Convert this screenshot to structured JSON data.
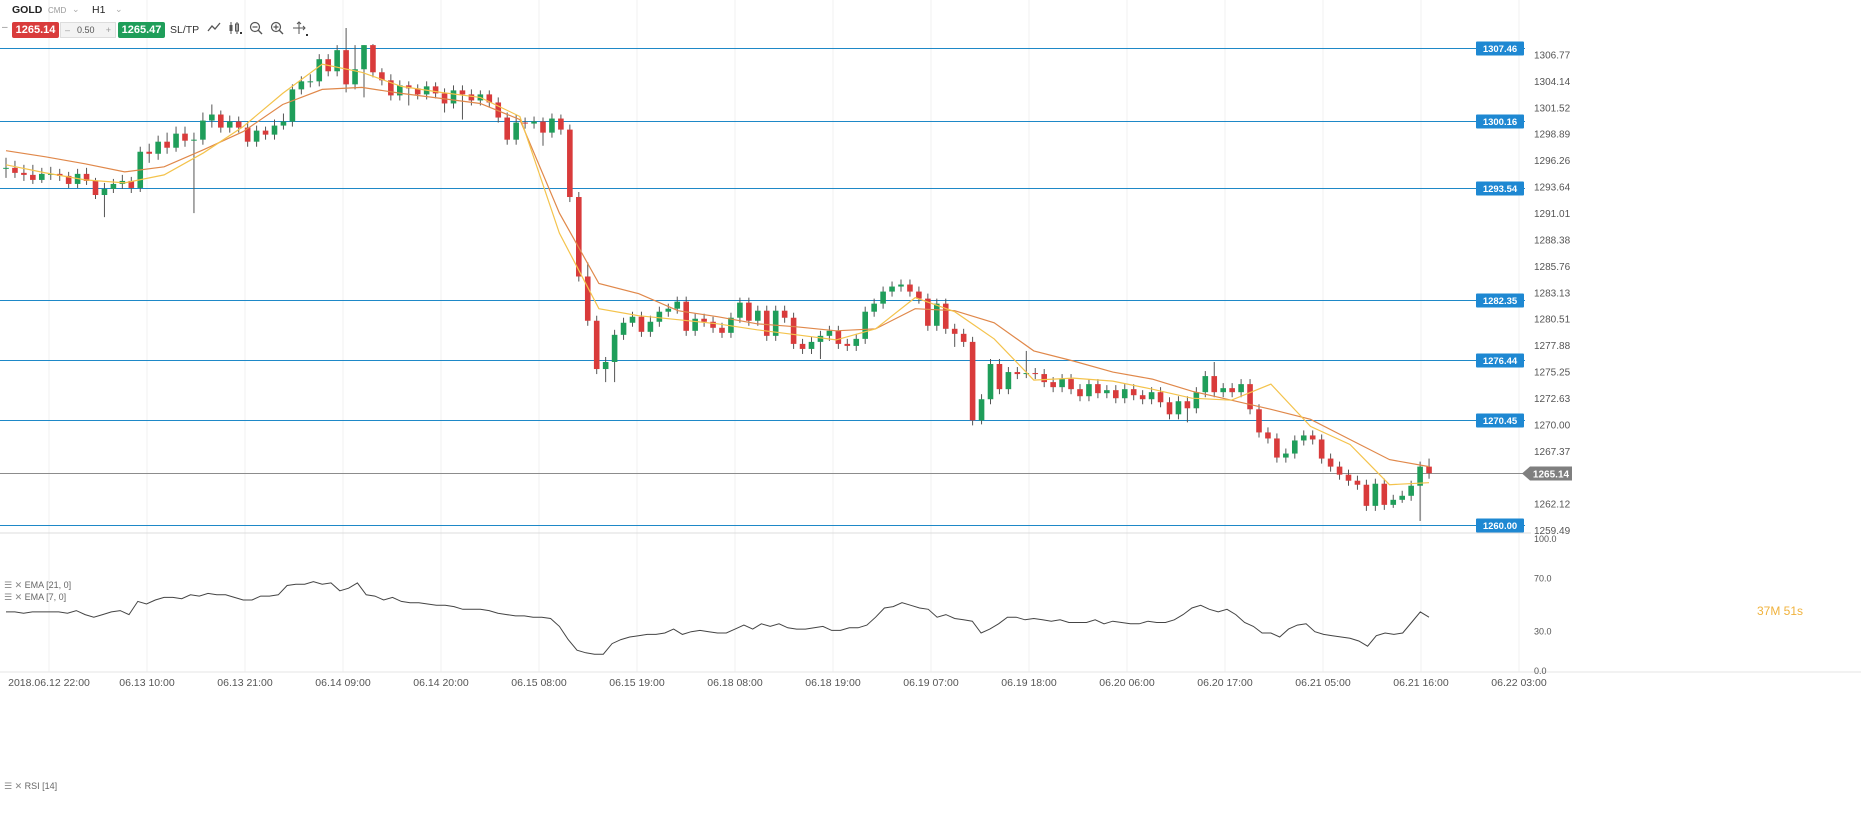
{
  "toolbar": {
    "symbol": "GOLD",
    "symbol_tag": "CMD",
    "dropdown_glyph": "⌄",
    "timeframe": "H1",
    "sell_price": "1265.14",
    "volume_minus": "–",
    "volume": "0.50",
    "volume_plus": "+",
    "buy_price": "1265.47",
    "sltp_label": "SL/TP",
    "icons": [
      "line-chart-icon",
      "candlestick-icon",
      "zoom-out-icon",
      "zoom-in-icon",
      "crosshair-icon"
    ]
  },
  "indicators": {
    "ema21_label": "EMA [21, 0]",
    "ema7_label": "EMA [7, 0]",
    "rsi_label": "RSI [14]"
  },
  "countdown": "37M 51s",
  "colors": {
    "bull": "#1f9e5a",
    "bear": "#d93b3b",
    "level_line": "#1e88c7",
    "level_tag": "#1e88d2",
    "ema21": "#e0884a",
    "ema7": "#f4c34c",
    "price_tag": "#7f7f7f",
    "rsi": "#444444"
  },
  "chart_data": {
    "type": "candlestick",
    "symbol": "GOLD",
    "timeframe": "H1",
    "y_axis_ticks": [
      "1306.77",
      "1304.14",
      "1301.52",
      "1298.89",
      "1296.26",
      "1293.64",
      "1291.01",
      "1288.38",
      "1285.76",
      "1283.13",
      "1280.51",
      "1277.88",
      "1275.25",
      "1272.63",
      "1270.00",
      "1267.37",
      "1265.14",
      "1262.12",
      "1259.49"
    ],
    "ylim": [
      1259.5,
      1309.6
    ],
    "current_price": "1265.14",
    "horizontal_levels": [
      "1307.46",
      "1300.16",
      "1293.54",
      "1282.35",
      "1276.44",
      "1270.45",
      "1260.00"
    ],
    "x_axis_labels": [
      "2018.06.12 22:00",
      "06.13 10:00",
      "06.13 21:00",
      "06.14 09:00",
      "06.14 20:00",
      "06.15 08:00",
      "06.15 19:00",
      "06.18 08:00",
      "06.18 19:00",
      "06.19 07:00",
      "06.19 18:00",
      "06.20 06:00",
      "06.20 17:00",
      "06.21 05:00",
      "06.21 16:00",
      "06.22 03:00"
    ],
    "rsi_ticks": [
      "100.0",
      "70.0",
      "30.0",
      "0.0"
    ],
    "candles": [
      [
        1295.5,
        1295.5,
        1294.5,
        1296.5
      ],
      [
        1295.5,
        1295.0,
        1294.5,
        1296.2
      ],
      [
        1295.0,
        1294.8,
        1294.2,
        1295.8
      ],
      [
        1294.8,
        1294.3,
        1293.9,
        1295.8
      ],
      [
        1294.3,
        1294.9,
        1294.0,
        1295.5
      ],
      [
        1294.9,
        1294.9,
        1294.3,
        1295.6
      ],
      [
        1294.9,
        1294.7,
        1294.2,
        1295.4
      ],
      [
        1294.7,
        1293.9,
        1293.5,
        1295.1
      ],
      [
        1293.9,
        1294.9,
        1293.5,
        1295.4
      ],
      [
        1294.9,
        1294.2,
        1293.8,
        1295.5
      ],
      [
        1294.2,
        1292.8,
        1292.4,
        1294.5
      ],
      [
        1292.8,
        1293.4,
        1290.6,
        1294.0
      ],
      [
        1293.4,
        1293.9,
        1293.0,
        1294.4
      ],
      [
        1293.9,
        1294.2,
        1293.4,
        1294.8
      ],
      [
        1294.2,
        1293.5,
        1293.0,
        1294.6
      ],
      [
        1293.5,
        1297.1,
        1293.1,
        1297.6
      ],
      [
        1297.1,
        1296.9,
        1296.0,
        1297.9
      ],
      [
        1296.9,
        1298.1,
        1296.3,
        1298.7
      ],
      [
        1298.1,
        1297.5,
        1296.9,
        1299.0
      ],
      [
        1297.5,
        1298.9,
        1297.1,
        1299.6
      ],
      [
        1298.9,
        1298.2,
        1297.6,
        1299.6
      ],
      [
        1298.2,
        1298.3,
        1291.0,
        1299.0
      ],
      [
        1298.3,
        1300.2,
        1297.8,
        1301.0
      ],
      [
        1300.2,
        1300.8,
        1299.5,
        1301.8
      ],
      [
        1300.8,
        1299.5,
        1299.0,
        1301.2
      ],
      [
        1299.5,
        1300.1,
        1299.0,
        1300.7
      ],
      [
        1300.1,
        1299.5,
        1299.0,
        1300.6
      ],
      [
        1299.5,
        1298.1,
        1297.6,
        1300.1
      ],
      [
        1298.1,
        1299.2,
        1297.6,
        1299.7
      ],
      [
        1299.2,
        1298.8,
        1298.3,
        1299.6
      ],
      [
        1298.8,
        1299.7,
        1298.3,
        1300.3
      ],
      [
        1299.7,
        1300.1,
        1299.3,
        1300.9
      ],
      [
        1300.1,
        1303.3,
        1299.6,
        1303.8
      ],
      [
        1303.3,
        1304.1,
        1302.8,
        1304.6
      ],
      [
        1304.1,
        1304.1,
        1303.5,
        1304.8
      ],
      [
        1304.1,
        1306.3,
        1303.6,
        1306.8
      ],
      [
        1306.3,
        1305.1,
        1304.6,
        1306.8
      ],
      [
        1305.1,
        1307.2,
        1304.6,
        1307.7
      ],
      [
        1307.2,
        1303.8,
        1303.0,
        1309.4
      ],
      [
        1303.8,
        1305.3,
        1303.3,
        1307.7
      ],
      [
        1305.3,
        1307.7,
        1302.5,
        1307.7
      ],
      [
        1307.7,
        1305.0,
        1304.5,
        1307.8
      ],
      [
        1305.0,
        1304.2,
        1303.7,
        1305.4
      ],
      [
        1304.2,
        1302.7,
        1302.2,
        1304.8
      ],
      [
        1302.7,
        1303.7,
        1302.2,
        1304.2
      ],
      [
        1303.7,
        1303.4,
        1301.7,
        1304.1
      ],
      [
        1303.4,
        1302.8,
        1302.3,
        1303.8
      ],
      [
        1302.8,
        1303.6,
        1302.3,
        1304.1
      ],
      [
        1303.6,
        1302.9,
        1302.4,
        1304.0
      ],
      [
        1302.9,
        1301.9,
        1301.0,
        1303.4
      ],
      [
        1301.9,
        1303.2,
        1301.4,
        1303.7
      ],
      [
        1303.2,
        1302.8,
        1300.3,
        1303.7
      ],
      [
        1302.8,
        1302.2,
        1301.7,
        1303.3
      ],
      [
        1302.2,
        1302.8,
        1301.7,
        1303.2
      ],
      [
        1302.8,
        1302.0,
        1301.5,
        1303.2
      ],
      [
        1302.0,
        1300.5,
        1300.0,
        1302.5
      ],
      [
        1300.5,
        1298.3,
        1297.8,
        1301.0
      ],
      [
        1298.3,
        1300.0,
        1297.8,
        1300.8
      ],
      [
        1300.0,
        1299.9,
        1299.4,
        1300.5
      ],
      [
        1299.9,
        1300.1,
        1299.4,
        1300.6
      ],
      [
        1300.1,
        1299.0,
        1297.7,
        1300.5
      ],
      [
        1299.0,
        1300.4,
        1298.5,
        1300.9
      ],
      [
        1300.4,
        1299.3,
        1298.8,
        1300.8
      ],
      [
        1299.3,
        1292.6,
        1292.1,
        1299.8
      ],
      [
        1292.6,
        1284.7,
        1284.2,
        1293.1
      ],
      [
        1284.7,
        1280.3,
        1279.8,
        1286.1
      ],
      [
        1280.3,
        1275.5,
        1275.0,
        1280.8
      ],
      [
        1275.5,
        1276.2,
        1274.2,
        1276.7
      ],
      [
        1276.2,
        1278.9,
        1274.2,
        1279.4
      ],
      [
        1278.9,
        1280.1,
        1278.4,
        1280.6
      ],
      [
        1280.1,
        1280.7,
        1279.7,
        1281.2
      ],
      [
        1280.7,
        1279.2,
        1278.7,
        1281.2
      ],
      [
        1279.2,
        1280.2,
        1278.7,
        1280.8
      ],
      [
        1280.2,
        1281.2,
        1279.7,
        1281.7
      ],
      [
        1281.2,
        1281.5,
        1280.7,
        1282.0
      ],
      [
        1281.5,
        1282.2,
        1281.0,
        1282.7
      ],
      [
        1282.2,
        1279.3,
        1278.8,
        1282.7
      ],
      [
        1279.3,
        1280.5,
        1278.8,
        1281.0
      ],
      [
        1280.5,
        1280.2,
        1279.7,
        1281.0
      ],
      [
        1280.2,
        1279.6,
        1279.1,
        1280.7
      ],
      [
        1279.6,
        1279.1,
        1278.6,
        1280.1
      ],
      [
        1279.1,
        1280.6,
        1278.6,
        1281.1
      ],
      [
        1280.6,
        1282.1,
        1280.1,
        1282.6
      ],
      [
        1282.1,
        1280.3,
        1279.8,
        1282.6
      ],
      [
        1280.3,
        1281.3,
        1279.8,
        1281.8
      ],
      [
        1281.3,
        1278.8,
        1278.3,
        1281.8
      ],
      [
        1278.8,
        1281.3,
        1278.3,
        1281.8
      ],
      [
        1281.3,
        1280.6,
        1280.1,
        1281.8
      ],
      [
        1280.6,
        1278.0,
        1277.5,
        1281.1
      ],
      [
        1278.0,
        1277.5,
        1277.0,
        1278.5
      ],
      [
        1277.5,
        1278.2,
        1277.0,
        1278.7
      ],
      [
        1278.2,
        1278.8,
        1276.5,
        1279.3
      ],
      [
        1278.8,
        1279.3,
        1278.3,
        1279.8
      ],
      [
        1279.3,
        1278.0,
        1277.5,
        1279.8
      ],
      [
        1278.0,
        1277.8,
        1277.3,
        1278.5
      ],
      [
        1277.8,
        1278.5,
        1277.3,
        1279.0
      ],
      [
        1278.5,
        1281.2,
        1278.0,
        1281.7
      ],
      [
        1281.2,
        1282.0,
        1280.7,
        1282.5
      ],
      [
        1282.0,
        1283.2,
        1281.5,
        1283.7
      ],
      [
        1283.2,
        1283.7,
        1282.7,
        1284.2
      ],
      [
        1283.7,
        1283.9,
        1283.2,
        1284.4
      ],
      [
        1283.9,
        1283.2,
        1282.7,
        1284.4
      ],
      [
        1283.2,
        1282.5,
        1282.0,
        1283.7
      ],
      [
        1282.5,
        1279.8,
        1279.3,
        1283.0
      ],
      [
        1279.8,
        1282.0,
        1279.3,
        1282.5
      ],
      [
        1282.0,
        1279.5,
        1279.0,
        1282.5
      ],
      [
        1279.5,
        1279.0,
        1277.7,
        1280.0
      ],
      [
        1279.0,
        1278.2,
        1277.7,
        1279.5
      ],
      [
        1278.2,
        1270.4,
        1269.9,
        1278.7
      ],
      [
        1270.4,
        1272.5,
        1270.0,
        1273.0
      ],
      [
        1272.5,
        1276.0,
        1272.0,
        1276.5
      ],
      [
        1276.0,
        1273.5,
        1273.0,
        1276.5
      ],
      [
        1273.5,
        1275.2,
        1273.0,
        1275.7
      ],
      [
        1275.2,
        1275.0,
        1274.5,
        1275.7
      ],
      [
        1275.0,
        1275.1,
        1274.6,
        1277.3
      ],
      [
        1275.1,
        1275.0,
        1274.5,
        1275.6
      ],
      [
        1275.0,
        1274.2,
        1273.7,
        1275.5
      ],
      [
        1274.2,
        1273.7,
        1273.2,
        1274.7
      ],
      [
        1273.7,
        1274.5,
        1273.2,
        1275.0
      ],
      [
        1274.5,
        1273.5,
        1273.0,
        1275.0
      ],
      [
        1273.5,
        1272.8,
        1272.3,
        1274.0
      ],
      [
        1272.8,
        1274.0,
        1272.3,
        1274.5
      ],
      [
        1274.0,
        1273.1,
        1272.6,
        1274.5
      ],
      [
        1273.1,
        1273.4,
        1272.6,
        1273.9
      ],
      [
        1273.4,
        1272.6,
        1272.1,
        1273.9
      ],
      [
        1272.6,
        1273.5,
        1272.1,
        1274.0
      ],
      [
        1273.5,
        1272.9,
        1272.4,
        1274.0
      ],
      [
        1272.9,
        1272.5,
        1272.0,
        1273.4
      ],
      [
        1272.5,
        1273.2,
        1272.0,
        1273.7
      ],
      [
        1273.2,
        1272.2,
        1271.7,
        1273.7
      ],
      [
        1272.2,
        1271.0,
        1270.5,
        1272.7
      ],
      [
        1271.0,
        1272.3,
        1270.5,
        1272.8
      ],
      [
        1272.3,
        1271.6,
        1270.2,
        1272.8
      ],
      [
        1271.6,
        1273.2,
        1271.1,
        1273.7
      ],
      [
        1273.2,
        1274.8,
        1272.7,
        1275.3
      ],
      [
        1274.8,
        1273.2,
        1272.7,
        1276.2
      ],
      [
        1273.2,
        1273.6,
        1272.7,
        1274.1
      ],
      [
        1273.6,
        1273.2,
        1272.7,
        1274.1
      ],
      [
        1273.2,
        1274.0,
        1272.7,
        1274.5
      ],
      [
        1274.0,
        1271.5,
        1271.0,
        1274.5
      ],
      [
        1271.5,
        1269.2,
        1268.7,
        1272.0
      ],
      [
        1269.2,
        1268.6,
        1268.1,
        1269.7
      ],
      [
        1268.6,
        1266.7,
        1266.2,
        1269.1
      ],
      [
        1266.7,
        1267.1,
        1266.2,
        1267.6
      ],
      [
        1267.1,
        1268.4,
        1266.6,
        1268.9
      ],
      [
        1268.4,
        1268.9,
        1267.9,
        1269.4
      ],
      [
        1268.9,
        1268.5,
        1268.0,
        1269.4
      ],
      [
        1268.5,
        1266.6,
        1266.1,
        1269.0
      ],
      [
        1266.6,
        1265.8,
        1265.3,
        1267.1
      ],
      [
        1265.8,
        1265.0,
        1264.5,
        1266.3
      ],
      [
        1265.0,
        1264.4,
        1263.9,
        1265.5
      ],
      [
        1264.4,
        1264.0,
        1263.5,
        1264.9
      ],
      [
        1264.0,
        1261.9,
        1261.4,
        1264.5
      ],
      [
        1261.9,
        1264.1,
        1261.4,
        1264.6
      ],
      [
        1264.1,
        1262.0,
        1261.5,
        1264.6
      ],
      [
        1262.0,
        1262.5,
        1261.7,
        1263.0
      ],
      [
        1262.5,
        1262.9,
        1262.2,
        1263.4
      ],
      [
        1262.9,
        1263.9,
        1262.4,
        1264.4
      ],
      [
        1263.9,
        1265.8,
        1260.4,
        1266.3
      ],
      [
        1265.8,
        1265.14,
        1264.6,
        1266.6
      ]
    ],
    "ema21": [
      1297.2,
      1296.6,
      1295.9,
      1295.1,
      1295.6,
      1297.3,
      1299.1,
      1301.8,
      1303.3,
      1303.5,
      1302.9,
      1302.4,
      1301.9,
      1300.3,
      1291.0,
      1284.0,
      1283.0,
      1281.3,
      1280.7,
      1280.0,
      1279.7,
      1279.3,
      1279.5,
      1281.5,
      1281.3,
      1280.1,
      1277.3,
      1276.3,
      1275.2,
      1274.5,
      1273.3,
      1272.4,
      1271.5,
      1270.5,
      1268.5,
      1266.5,
      1265.8
    ],
    "ema7": [
      1295.8,
      1295.0,
      1294.3,
      1294.0,
      1294.8,
      1297.0,
      1299.6,
      1302.9,
      1305.8,
      1305.0,
      1303.6,
      1303.0,
      1302.5,
      1300.6,
      1289.0,
      1281.5,
      1280.8,
      1280.4,
      1280.0,
      1279.4,
      1278.9,
      1278.4,
      1279.5,
      1282.6,
      1281.2,
      1278.5,
      1274.4,
      1274.6,
      1274.3,
      1273.5,
      1272.6,
      1272.4,
      1274.0,
      1269.8,
      1268.0,
      1264.0,
      1264.2
    ],
    "rsi": [
      44,
      44,
      43,
      44,
      44,
      44,
      44,
      43,
      45,
      42,
      40,
      42,
      44,
      45,
      42,
      52,
      50,
      53,
      55,
      55,
      54,
      57,
      56,
      58,
      57,
      57,
      55,
      53,
      53,
      56,
      56,
      57,
      64,
      65,
      65,
      67,
      65,
      66,
      60,
      62,
      66,
      57,
      56,
      53,
      55,
      52,
      51,
      51,
      50,
      49,
      49,
      48,
      46,
      46,
      46,
      45,
      43,
      42,
      41,
      41,
      40,
      40,
      39,
      33,
      23,
      15,
      13,
      12,
      12,
      20,
      23,
      25,
      26,
      27,
      27,
      28,
      31,
      27,
      29,
      30,
      29,
      28,
      28,
      31,
      34,
      31,
      35,
      33,
      35,
      32,
      31,
      31,
      32,
      33,
      30,
      30,
      32,
      32,
      34,
      40,
      47,
      48,
      51,
      49,
      47,
      46,
      40,
      42,
      39,
      38,
      37,
      28,
      31,
      35,
      40,
      40,
      38,
      39,
      38,
      37,
      38,
      36,
      36,
      36,
      38,
      35,
      37,
      36,
      35,
      35,
      37,
      36,
      36,
      38,
      42,
      47,
      49,
      46,
      44,
      46,
      42,
      36,
      33,
      28,
      28,
      25,
      31,
      34,
      35,
      29,
      27,
      26,
      25,
      24,
      22,
      18,
      26,
      28,
      27,
      28,
      36,
      44,
      40
    ]
  }
}
